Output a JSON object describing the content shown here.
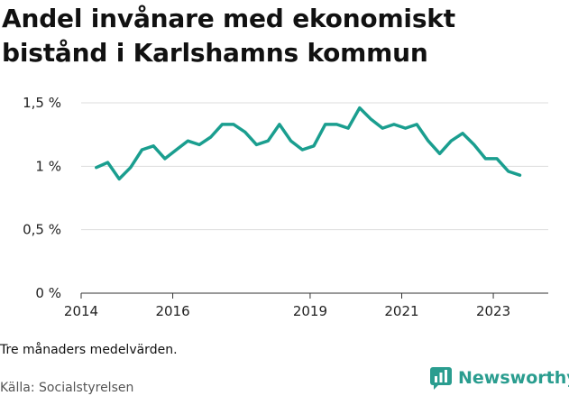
{
  "header": {
    "title": "Andel invånare med ekonomiskt bistånd i Karlshamns kommun"
  },
  "footer": {
    "note": "Tre månaders medelvärden.",
    "source": "Källa: Socialstyrelsen",
    "brand": "Newsworthy"
  },
  "colors": {
    "line": "#1a9e8f",
    "grid": "#dddddd",
    "axis": "#333333",
    "brand": "#2a9d8f"
  },
  "icons": {
    "brand": "newsworthy-logo-icon"
  },
  "chart_data": {
    "type": "line",
    "title": "Andel invånare med ekonomiskt bistånd i Karlshamns kommun",
    "xlabel": "",
    "ylabel": "",
    "ylim": [
      0,
      1.5
    ],
    "xlim": [
      2014,
      2024.2
    ],
    "grid": true,
    "legend": "none",
    "y_ticks": [
      {
        "value": 0,
        "label": "0 %"
      },
      {
        "value": 0.5,
        "label": "0,5 %"
      },
      {
        "value": 1,
        "label": "1 %"
      },
      {
        "value": 1.5,
        "label": "1,5 %"
      }
    ],
    "x_ticks": [
      {
        "value": 2014,
        "label": "2014"
      },
      {
        "value": 2016,
        "label": "2016"
      },
      {
        "value": 2019,
        "label": "2019"
      },
      {
        "value": 2021,
        "label": "2021"
      },
      {
        "value": 2023,
        "label": "2023"
      }
    ],
    "series": [
      {
        "values": [
          [
            2014.33,
            0.99
          ],
          [
            2014.58,
            1.03
          ],
          [
            2014.83,
            0.9
          ],
          [
            2015.08,
            0.99
          ],
          [
            2015.33,
            1.13
          ],
          [
            2015.58,
            1.16
          ],
          [
            2015.83,
            1.06
          ],
          [
            2016.08,
            1.13
          ],
          [
            2016.33,
            1.2
          ],
          [
            2016.58,
            1.17
          ],
          [
            2016.83,
            1.23
          ],
          [
            2017.08,
            1.33
          ],
          [
            2017.33,
            1.33
          ],
          [
            2017.58,
            1.27
          ],
          [
            2017.83,
            1.17
          ],
          [
            2018.08,
            1.2
          ],
          [
            2018.33,
            1.33
          ],
          [
            2018.58,
            1.2
          ],
          [
            2018.83,
            1.13
          ],
          [
            2019.08,
            1.16
          ],
          [
            2019.33,
            1.33
          ],
          [
            2019.58,
            1.33
          ],
          [
            2019.83,
            1.3
          ],
          [
            2020.08,
            1.46
          ],
          [
            2020.33,
            1.37
          ],
          [
            2020.58,
            1.3
          ],
          [
            2020.83,
            1.33
          ],
          [
            2021.08,
            1.3
          ],
          [
            2021.33,
            1.33
          ],
          [
            2021.58,
            1.2
          ],
          [
            2021.83,
            1.1
          ],
          [
            2022.08,
            1.2
          ],
          [
            2022.33,
            1.26
          ],
          [
            2022.58,
            1.17
          ],
          [
            2022.83,
            1.06
          ],
          [
            2023.08,
            1.06
          ],
          [
            2023.33,
            0.96
          ],
          [
            2023.58,
            0.93
          ]
        ]
      }
    ]
  }
}
